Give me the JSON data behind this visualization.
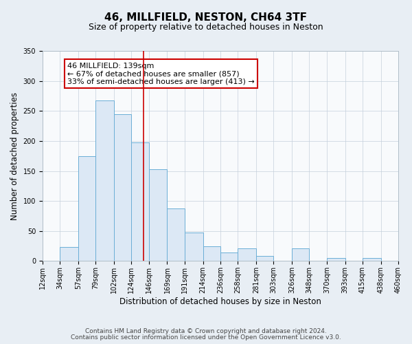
{
  "title": "46, MILLFIELD, NESTON, CH64 3TF",
  "subtitle": "Size of property relative to detached houses in Neston",
  "xlabel": "Distribution of detached houses by size in Neston",
  "ylabel": "Number of detached properties",
  "bar_heights": [
    0,
    23,
    175,
    268,
    245,
    198,
    153,
    88,
    47,
    25,
    14,
    21,
    8,
    0,
    21,
    0,
    5,
    0,
    5,
    0
  ],
  "bin_edges": [
    12,
    34,
    57,
    79,
    102,
    124,
    146,
    169,
    191,
    214,
    236,
    258,
    281,
    303,
    326,
    348,
    370,
    393,
    415,
    438,
    460
  ],
  "tick_labels": [
    "12sqm",
    "34sqm",
    "57sqm",
    "79sqm",
    "102sqm",
    "124sqm",
    "146sqm",
    "169sqm",
    "191sqm",
    "214sqm",
    "236sqm",
    "258sqm",
    "281sqm",
    "303sqm",
    "326sqm",
    "348sqm",
    "370sqm",
    "393sqm",
    "415sqm",
    "438sqm",
    "460sqm"
  ],
  "bar_facecolor": "#dce8f5",
  "bar_edgecolor": "#6baed6",
  "vline_x": 139,
  "vline_color": "#cc0000",
  "annotation_text": "46 MILLFIELD: 139sqm\n← 67% of detached houses are smaller (857)\n33% of semi-detached houses are larger (413) →",
  "annotation_box_edgecolor": "#cc0000",
  "annotation_box_facecolor": "#ffffff",
  "ylim": [
    0,
    350
  ],
  "yticks": [
    0,
    50,
    100,
    150,
    200,
    250,
    300,
    350
  ],
  "footer1": "Contains HM Land Registry data © Crown copyright and database right 2024.",
  "footer2": "Contains public sector information licensed under the Open Government Licence v3.0.",
  "background_color": "#e8eef4",
  "plot_background_color": "#f8fafc",
  "title_fontsize": 11,
  "subtitle_fontsize": 9,
  "axis_label_fontsize": 8.5,
  "tick_fontsize": 7,
  "footer_fontsize": 6.5,
  "annotation_fontsize": 8
}
